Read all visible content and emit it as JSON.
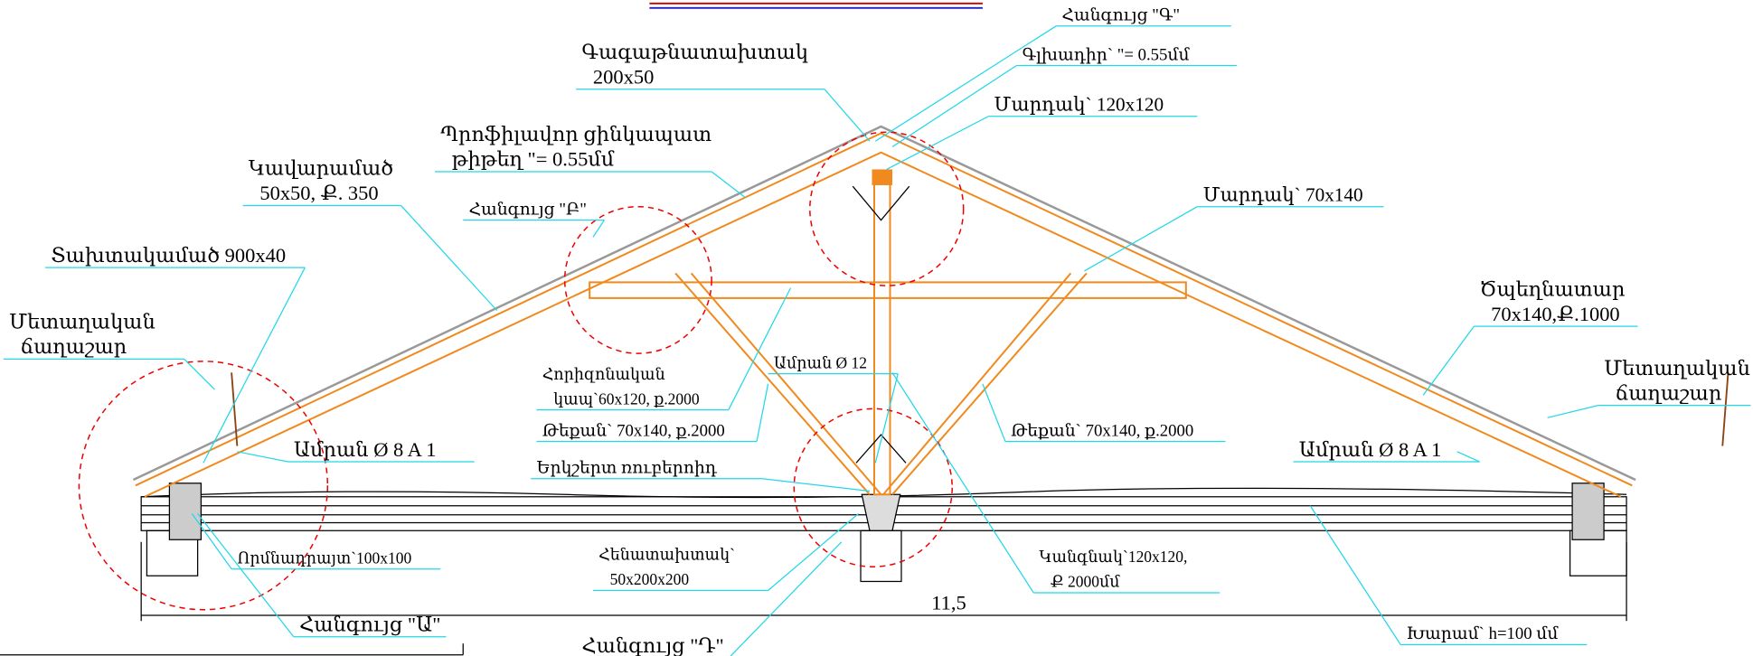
{
  "callouts": [
    {
      "lines": [
        "Հանգույց \"Գ\""
      ]
    },
    {
      "lines": [
        "Գագաթնատախտակ",
        "200x50"
      ]
    },
    {
      "lines": [
        "Գլխադիր`   \"= 0.55մմ"
      ]
    },
    {
      "lines": [
        "Մարդակ` 120x120"
      ]
    },
    {
      "lines": [
        "Պրոֆիլավոր ցինկապատ",
        "թիթեղ   \"= 0.55մմ"
      ]
    },
    {
      "lines": [
        "Կավարամած",
        "50x50, Ք. 350"
      ]
    },
    {
      "lines": [
        "Հանգույց \"Բ\""
      ]
    },
    {
      "lines": [
        "Մարդակ` 70x140"
      ]
    },
    {
      "lines": [
        "Տախտակամած 900x40"
      ]
    },
    {
      "lines": [
        "Ծպեղնատար",
        "70x140,Ք.1000"
      ]
    },
    {
      "lines": [
        "Մետաղական",
        "ճաղաշար"
      ]
    },
    {
      "lines": [
        "Մետաղական",
        "ճաղաշար"
      ]
    },
    {
      "lines": [
        "Հորիզոնական",
        "կապ`60x120, ք.2000"
      ]
    },
    {
      "lines": [
        "Ամրան Ø 12"
      ]
    },
    {
      "lines": [
        "Թեքան` 70x140, ք.2000"
      ]
    },
    {
      "lines": [
        "Թեքան` 70x140, ք.2000"
      ]
    },
    {
      "lines": [
        "Ամրան Ø 8 A 1"
      ]
    },
    {
      "lines": [
        "Ամրան Ø 8 A 1"
      ]
    },
    {
      "lines": [
        "Երկշերտ ռուբերոիդ"
      ]
    },
    {
      "lines": [
        "Որմնադրայտ`100x100"
      ]
    },
    {
      "lines": [
        "Հենատախտակ`",
        "50x200x200"
      ]
    },
    {
      "lines": [
        "Կանգնակ`120x120,",
        "Ք 2000մմ"
      ]
    },
    {
      "lines": [
        "Հանգույց \"Ա\""
      ]
    },
    {
      "lines": [
        "Խարամ` h=100 մմ"
      ]
    },
    {
      "lines": [
        "Հանգույց \"Դ\""
      ]
    }
  ],
  "dimension": "11,5"
}
